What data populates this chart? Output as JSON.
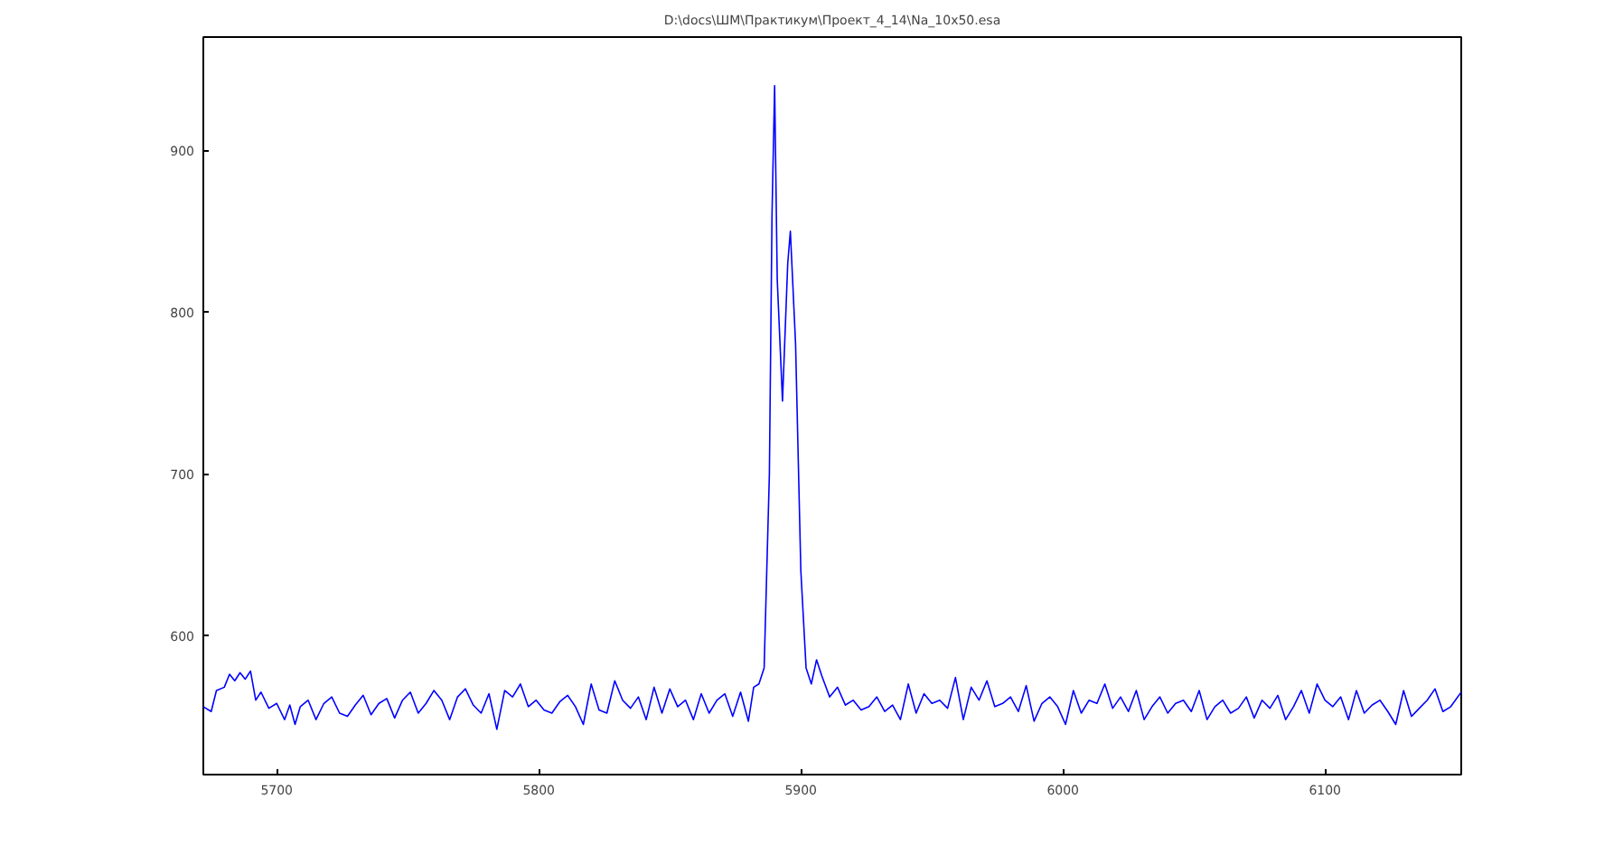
{
  "chart_data": {
    "type": "line",
    "title": "D:\\docs\\ШМ\\Практикум\\Проект_4_14\\Na_10x50.esa",
    "xlim": [
      5672,
      6152
    ],
    "ylim": [
      514,
      970
    ],
    "xticks": [
      5700,
      5800,
      5900,
      6000,
      6100
    ],
    "yticks": [
      600,
      700,
      800,
      900
    ],
    "grid": false,
    "marker": "none",
    "line_style": "solid",
    "series": [
      {
        "color": "#0000ff",
        "x": [
          5672,
          5675,
          5677,
          5680,
          5682,
          5684,
          5686,
          5688,
          5690,
          5692,
          5694,
          5697,
          5700,
          5703,
          5705,
          5707,
          5709,
          5712,
          5715,
          5718,
          5721,
          5724,
          5727,
          5730,
          5733,
          5736,
          5739,
          5742,
          5745,
          5748,
          5751,
          5754,
          5757,
          5760,
          5763,
          5766,
          5769,
          5772,
          5775,
          5778,
          5781,
          5784,
          5787,
          5790,
          5793,
          5796,
          5799,
          5802,
          5805,
          5808,
          5811,
          5814,
          5817,
          5820,
          5823,
          5826,
          5829,
          5832,
          5835,
          5838,
          5841,
          5844,
          5847,
          5850,
          5853,
          5856,
          5859,
          5862,
          5865,
          5868,
          5871,
          5874,
          5877,
          5880,
          5882,
          5884,
          5886,
          5888,
          5889,
          5890,
          5891,
          5893,
          5895,
          5896,
          5898,
          5900,
          5902,
          5904,
          5906,
          5908,
          5911,
          5914,
          5917,
          5920,
          5923,
          5926,
          5929,
          5932,
          5935,
          5938,
          5941,
          5944,
          5947,
          5950,
          5953,
          5956,
          5959,
          5962,
          5965,
          5968,
          5971,
          5974,
          5977,
          5980,
          5983,
          5986,
          5989,
          5992,
          5995,
          5998,
          6001,
          6004,
          6007,
          6010,
          6013,
          6016,
          6019,
          6022,
          6025,
          6028,
          6031,
          6034,
          6037,
          6040,
          6043,
          6046,
          6049,
          6052,
          6055,
          6058,
          6061,
          6064,
          6067,
          6070,
          6073,
          6076,
          6079,
          6082,
          6085,
          6088,
          6091,
          6094,
          6097,
          6100,
          6103,
          6106,
          6109,
          6112,
          6115,
          6118,
          6121,
          6124,
          6127,
          6130,
          6133,
          6136,
          6139,
          6142,
          6145,
          6148,
          6152
        ],
        "values": [
          556,
          553,
          566,
          568,
          576,
          572,
          577,
          573,
          578,
          560,
          565,
          555,
          558,
          548,
          557,
          545,
          556,
          560,
          548,
          558,
          562,
          552,
          550,
          557,
          563,
          551,
          558,
          561,
          549,
          560,
          565,
          552,
          558,
          566,
          560,
          548,
          562,
          567,
          557,
          552,
          564,
          542,
          566,
          562,
          570,
          556,
          560,
          554,
          552,
          559,
          563,
          556,
          545,
          570,
          554,
          552,
          572,
          560,
          555,
          562,
          548,
          568,
          552,
          567,
          556,
          560,
          548,
          564,
          552,
          560,
          564,
          550,
          565,
          547,
          568,
          570,
          580,
          700,
          860,
          940,
          820,
          745,
          830,
          850,
          780,
          640,
          580,
          570,
          585,
          575,
          562,
          568,
          557,
          560,
          554,
          556,
          562,
          553,
          557,
          548,
          570,
          552,
          564,
          558,
          560,
          555,
          574,
          548,
          568,
          560,
          572,
          556,
          558,
          562,
          553,
          569,
          547,
          558,
          562,
          556,
          545,
          566,
          552,
          560,
          558,
          570,
          555,
          562,
          553,
          566,
          548,
          556,
          562,
          552,
          558,
          560,
          553,
          566,
          548,
          556,
          560,
          552,
          555,
          562,
          549,
          560,
          555,
          563,
          548,
          556,
          566,
          552,
          570,
          560,
          556,
          562,
          548,
          566,
          552,
          557,
          560,
          553,
          545,
          566,
          550,
          555,
          560,
          567,
          553,
          556,
          565
        ]
      }
    ]
  }
}
